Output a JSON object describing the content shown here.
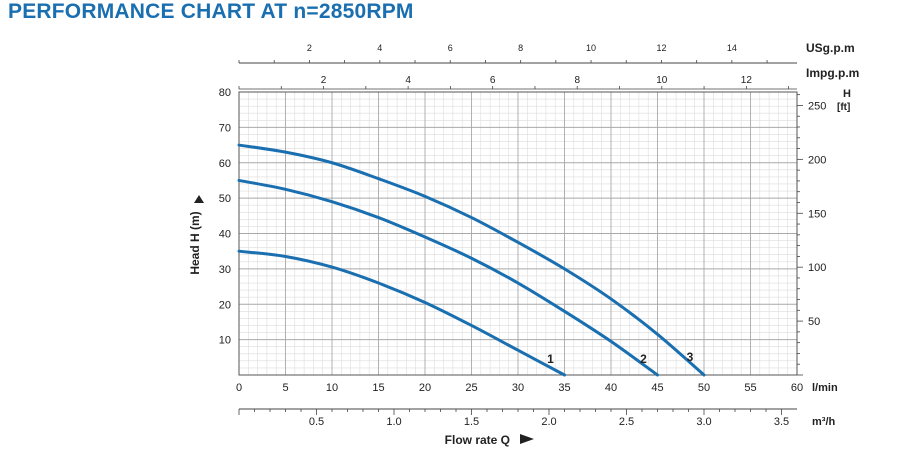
{
  "chart_data": {
    "type": "line",
    "title": "PERFORMANCE CHART AT n=2850RPM",
    "xlabel": "Flow rate Q",
    "ylabel": "Head H (m)",
    "x_unit": "l/min",
    "xlim": [
      0,
      60
    ],
    "ylim": [
      0,
      80
    ],
    "grid": true,
    "x_ticks": [
      "0",
      "5",
      "10",
      "15",
      "20",
      "25",
      "30",
      "35",
      "40",
      "45",
      "50",
      "55",
      "60"
    ],
    "y_ticks": [
      "10",
      "20",
      "30",
      "40",
      "50",
      "60",
      "70",
      "80"
    ],
    "secondary_axes": {
      "usgpm": {
        "label": "USg.p.m",
        "ticks": [
          "2",
          "4",
          "6",
          "8",
          "10",
          "12",
          "14"
        ]
      },
      "impgpm": {
        "label": "Impg.p.m",
        "ticks": [
          "2",
          "4",
          "6",
          "8",
          "10",
          "12"
        ]
      },
      "feet": {
        "label_line1": "H",
        "label_line2": "[ft]",
        "ticks": [
          "50",
          "100",
          "150",
          "200",
          "250"
        ]
      },
      "m3h": {
        "label": "m³/h",
        "ticks": [
          "0.5",
          "1.0",
          "1.5",
          "2.0",
          "2.5",
          "3.0",
          "3.5"
        ]
      }
    },
    "series": [
      {
        "name": "1",
        "color": "#1a6fb0",
        "x": [
          0,
          5,
          10,
          15,
          20,
          25,
          30,
          35
        ],
        "y": [
          35,
          33.5,
          30.5,
          26,
          20.5,
          14,
          7,
          0
        ]
      },
      {
        "name": "2",
        "color": "#1a6fb0",
        "x": [
          0,
          5,
          10,
          15,
          20,
          25,
          30,
          35,
          40,
          45
        ],
        "y": [
          55,
          52.5,
          49,
          44.5,
          39,
          33,
          26,
          18,
          9.5,
          0
        ]
      },
      {
        "name": "3",
        "color": "#1a6fb0",
        "x": [
          0,
          5,
          10,
          15,
          20,
          25,
          30,
          35,
          40,
          45,
          50
        ],
        "y": [
          65,
          63,
          60,
          55.5,
          50.5,
          44.5,
          37.5,
          30,
          21.5,
          11.5,
          0
        ]
      }
    ]
  }
}
